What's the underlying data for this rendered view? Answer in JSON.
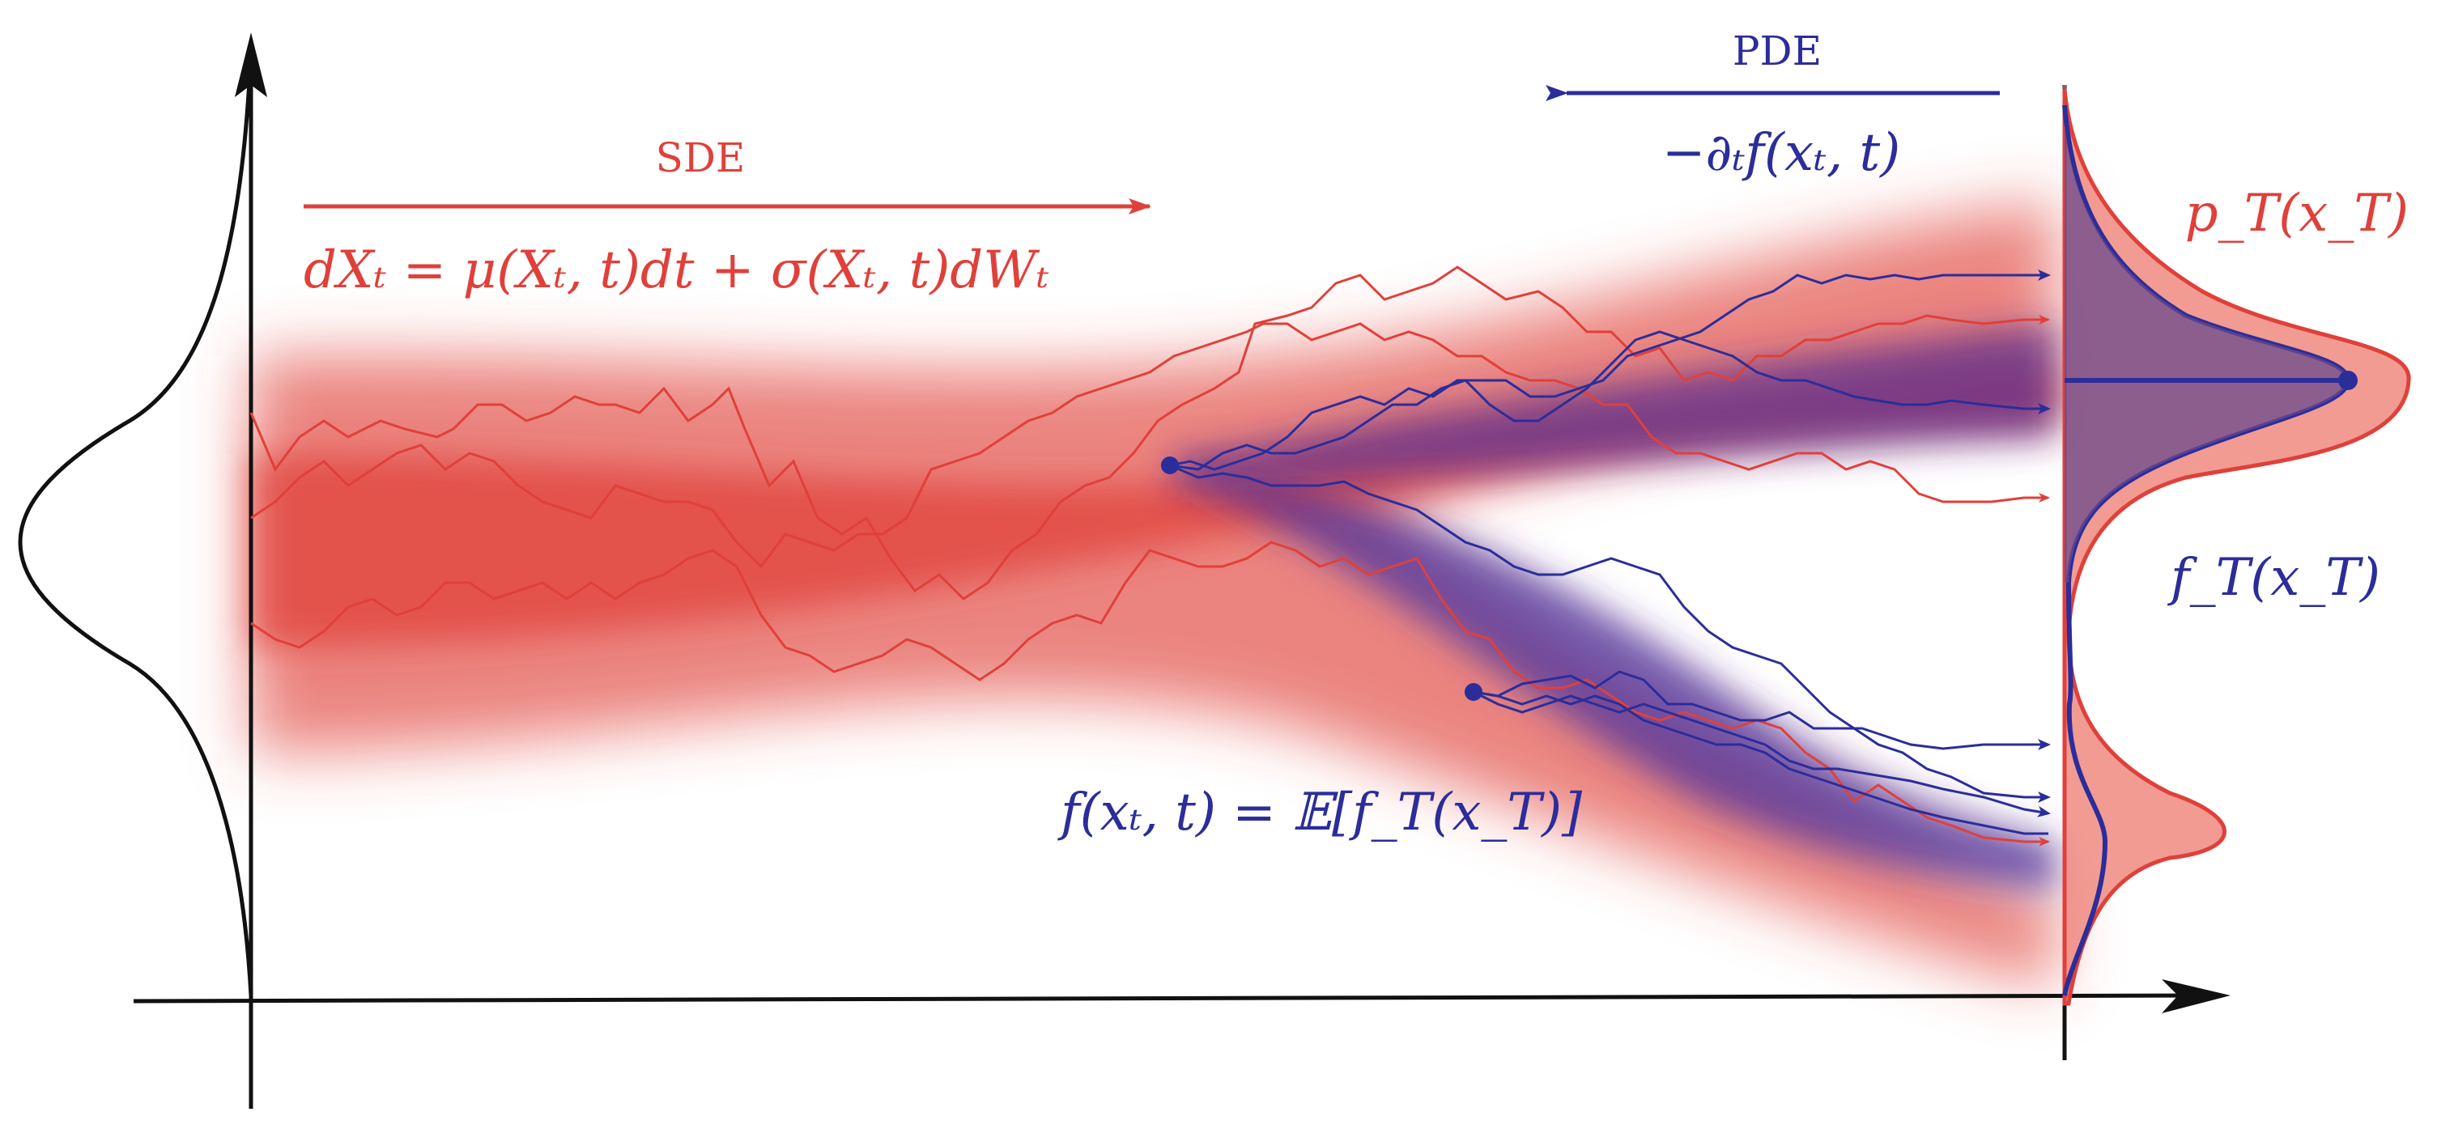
{
  "colors": {
    "red": "#e0403a",
    "red_fill": "#ee8a80",
    "blue": "#2b2d9a",
    "purple_fill": "#8a5c8c",
    "axis": "#111111"
  },
  "labels": {
    "sde_title": "SDE",
    "sde_equation": "dXₜ = μ(Xₜ, t)dt + σ(Xₜ, t)dWₜ",
    "pde_title": "PDE",
    "pde_equation": "−∂ₜf(xₜ, t)",
    "p_T": "p_T(x_T)",
    "f_T": "f_T(x_T)",
    "expectation": "f(xₜ, t) = 𝔼[f_T(x_T)]"
  }
}
